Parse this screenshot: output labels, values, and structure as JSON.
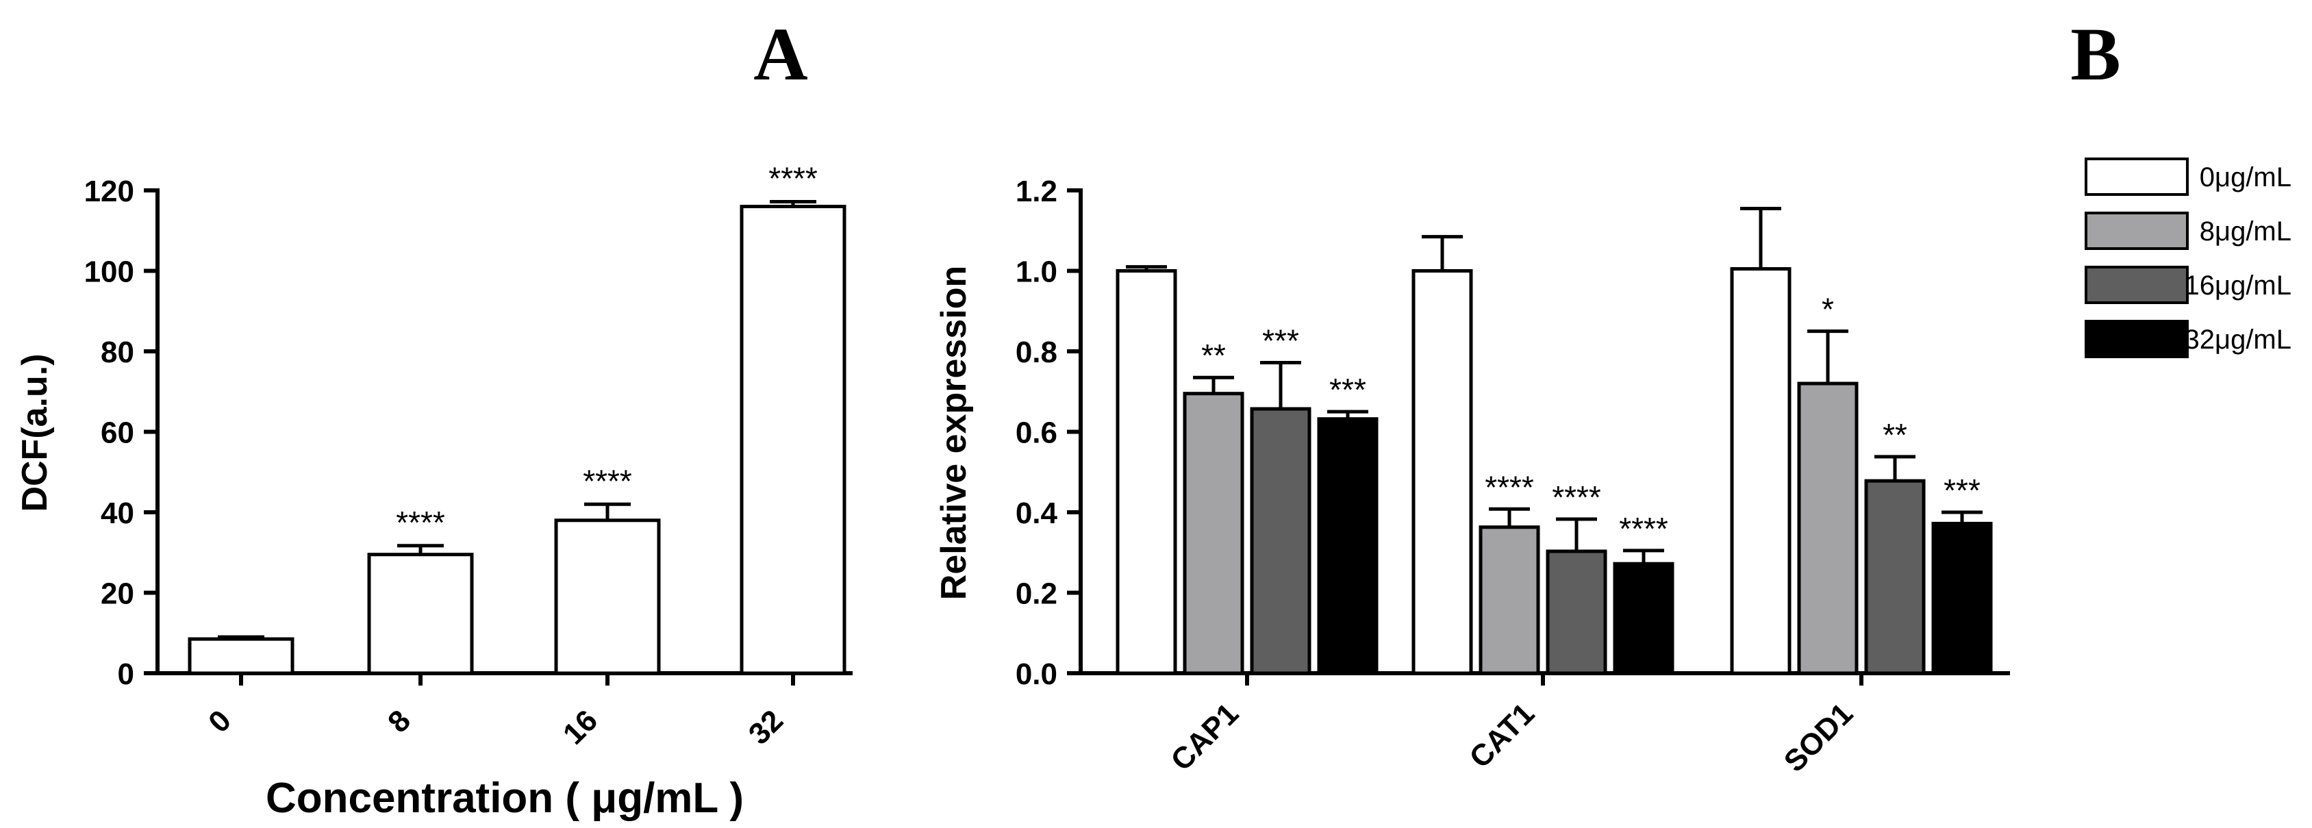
{
  "panel_labels": {
    "a": "A",
    "b": "B"
  },
  "chart_data": [
    {
      "type": "bar",
      "panel": "A",
      "title": "",
      "xlabel": "Concentration ( μg/mL )",
      "ylabel": "DCF(a.u.)",
      "categories": [
        "0",
        "8",
        "16",
        "32"
      ],
      "values": [
        8.5,
        29.5,
        38.0,
        116.0
      ],
      "errors": [
        0.5,
        2.2,
        4.0,
        1.2
      ],
      "significance": [
        "",
        "****",
        "****",
        "****"
      ],
      "ylim": [
        0,
        120
      ],
      "yticks": [
        "0",
        "20",
        "40",
        "60",
        "80",
        "100",
        "120"
      ],
      "bar_color": "#ffffff",
      "grid": false
    },
    {
      "type": "bar",
      "panel": "B",
      "title": "",
      "xlabel": "",
      "ylabel": "Relative expression",
      "categories": [
        "CAP1",
        "CAT1",
        "SOD1"
      ],
      "ylim": [
        0,
        1.2
      ],
      "yticks": [
        "0.0",
        "0.2",
        "0.4",
        "0.6",
        "0.8",
        "1.0",
        "1.2"
      ],
      "legend_position": "top-right",
      "grid": false,
      "series": [
        {
          "name": "0μg/mL",
          "color": "#ffffff",
          "values": [
            1.0,
            1.0,
            1.005
          ],
          "errors": [
            0.01,
            0.085,
            0.15
          ],
          "significance": [
            "",
            "",
            ""
          ]
        },
        {
          "name": "8μg/mL",
          "color": "#a3a3a6",
          "values": [
            0.695,
            0.363,
            0.72
          ],
          "errors": [
            0.04,
            0.045,
            0.13
          ],
          "significance": [
            "**",
            "****",
            "*"
          ]
        },
        {
          "name": "16μg/mL",
          "color": "#5f5f5f",
          "values": [
            0.657,
            0.303,
            0.478
          ],
          "errors": [
            0.115,
            0.08,
            0.06
          ],
          "significance": [
            "***",
            "****",
            "**"
          ]
        },
        {
          "name": "32μg/mL",
          "color": "#000000",
          "values": [
            0.632,
            0.272,
            0.372
          ],
          "errors": [
            0.018,
            0.033,
            0.028
          ],
          "significance": [
            "***",
            "****",
            "***"
          ]
        }
      ]
    }
  ]
}
